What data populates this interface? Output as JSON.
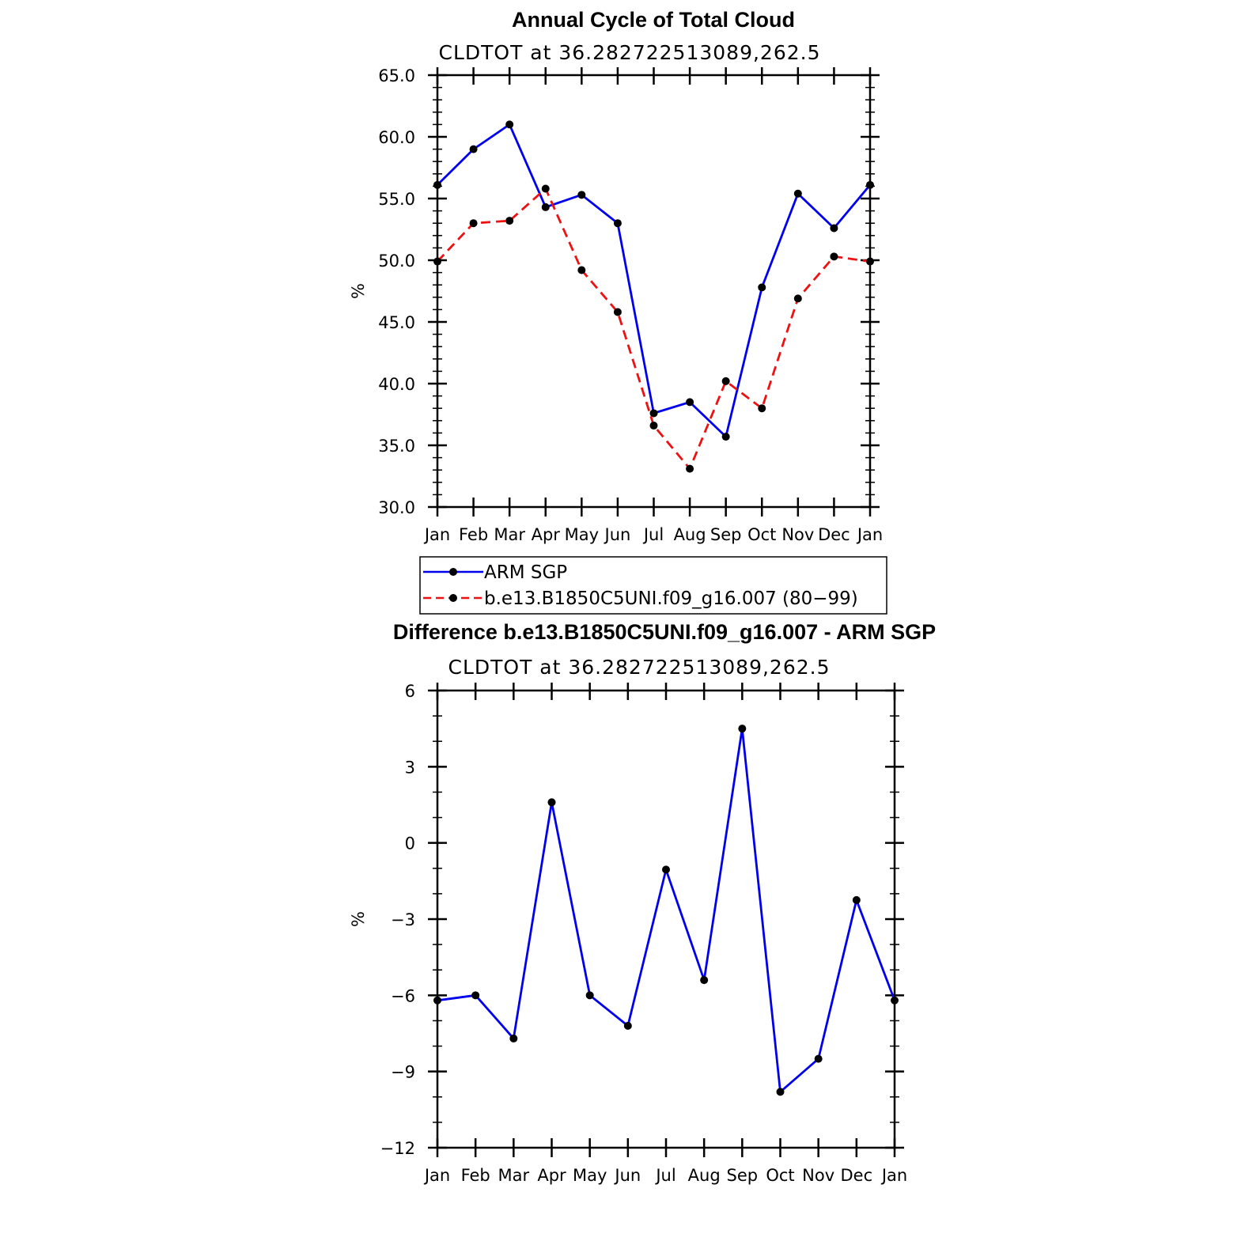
{
  "chart_data": [
    {
      "type": "line",
      "title": "Annual Cycle of Total Cloud",
      "subtitle": "CLDTOT at 36.282722513089,262.5",
      "ylabel": "%",
      "xlabel": "",
      "categories": [
        "Jan",
        "Feb",
        "Mar",
        "Apr",
        "May",
        "Jun",
        "Jul",
        "Aug",
        "Sep",
        "Oct",
        "Nov",
        "Dec",
        "Jan"
      ],
      "y_tick_labels": [
        "30.0",
        "35.0",
        "40.0",
        "45.0",
        "50.0",
        "55.0",
        "60.0",
        "65.0"
      ],
      "ylim": [
        30,
        65
      ],
      "y_ticks": [
        30,
        35,
        40,
        45,
        50,
        55,
        60,
        65
      ],
      "grid": false,
      "legend_position": "bottom",
      "series": [
        {
          "name": "ARM SGP",
          "color": "#0000ee",
          "dash": "solid",
          "values": [
            56.1,
            59.0,
            61.0,
            54.3,
            55.3,
            53.0,
            37.6,
            38.5,
            35.7,
            47.8,
            55.4,
            52.6,
            56.1
          ]
        },
        {
          "name": "b.e13.B1850C5UNI.f09_g16.007 (80−99)",
          "color": "#ee1111",
          "dash": "dashed",
          "values": [
            49.9,
            53.0,
            53.2,
            55.8,
            49.2,
            45.8,
            36.6,
            33.1,
            40.2,
            38.0,
            46.9,
            50.3,
            49.9
          ]
        }
      ]
    },
    {
      "type": "line",
      "title": "Difference b.e13.B1850C5UNI.f09_g16.007 - ARM SGP",
      "subtitle": "CLDTOT at 36.282722513089,262.5",
      "ylabel": "%",
      "xlabel": "",
      "categories": [
        "Jan",
        "Feb",
        "Mar",
        "Apr",
        "May",
        "Jun",
        "Jul",
        "Aug",
        "Sep",
        "Oct",
        "Nov",
        "Dec",
        "Jan"
      ],
      "y_tick_labels": [
        "−12",
        "−9",
        "−6",
        "−3",
        "0",
        "3",
        "6"
      ],
      "ylim": [
        -12,
        6
      ],
      "y_ticks": [
        -12,
        -9,
        -6,
        -3,
        0,
        3,
        6
      ],
      "grid": false,
      "series": [
        {
          "color": "#0000ee",
          "dash": "solid",
          "values": [
            -6.2,
            -6.0,
            -7.7,
            1.6,
            -6.0,
            -7.2,
            -1.05,
            -5.4,
            4.5,
            -9.8,
            -8.5,
            -2.25,
            -6.2
          ]
        }
      ]
    }
  ]
}
